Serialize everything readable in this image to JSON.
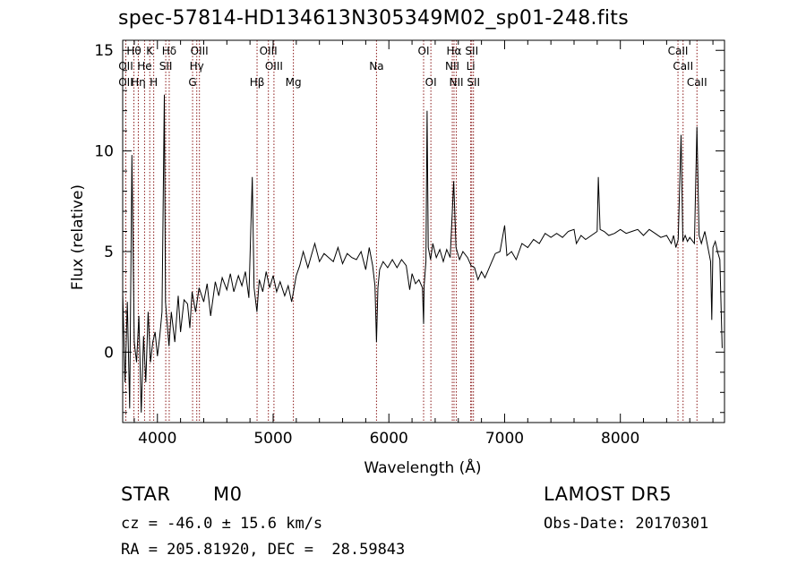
{
  "chart_data": {
    "type": "line",
    "title": "spec-57814-HD134613N305349M02_sp01-248.fits",
    "xlabel": "Wavelength (Å)",
    "ylabel": "Flux (relative)",
    "xlim": [
      3700,
      8900
    ],
    "ylim": [
      -3.5,
      15.5
    ],
    "xticks": [
      4000,
      5000,
      6000,
      7000,
      8000
    ],
    "yticks": [
      0,
      5,
      10,
      15
    ],
    "grid": false,
    "series": [
      {
        "color": "#000000",
        "points": [
          [
            3700,
            3.0
          ],
          [
            3720,
            -1.5
          ],
          [
            3740,
            2.5
          ],
          [
            3760,
            -2.8
          ],
          [
            3780,
            9.8
          ],
          [
            3800,
            0.5
          ],
          [
            3820,
            -0.5
          ],
          [
            3840,
            1.8
          ],
          [
            3860,
            -3.0
          ],
          [
            3880,
            0.8
          ],
          [
            3900,
            -1.5
          ],
          [
            3920,
            2.0
          ],
          [
            3940,
            -0.5
          ],
          [
            3960,
            0.5
          ],
          [
            3980,
            1.0
          ],
          [
            4000,
            -0.2
          ],
          [
            4020,
            0.8
          ],
          [
            4040,
            2.0
          ],
          [
            4060,
            12.8
          ],
          [
            4070,
            2.5
          ],
          [
            4100,
            0.3
          ],
          [
            4120,
            2.0
          ],
          [
            4150,
            0.5
          ],
          [
            4180,
            2.8
          ],
          [
            4200,
            1.0
          ],
          [
            4230,
            2.6
          ],
          [
            4260,
            2.4
          ],
          [
            4280,
            1.2
          ],
          [
            4300,
            3.0
          ],
          [
            4330,
            2.0
          ],
          [
            4360,
            3.2
          ],
          [
            4400,
            2.5
          ],
          [
            4430,
            3.4
          ],
          [
            4460,
            1.8
          ],
          [
            4500,
            3.5
          ],
          [
            4530,
            2.8
          ],
          [
            4560,
            3.7
          ],
          [
            4600,
            3.1
          ],
          [
            4630,
            3.9
          ],
          [
            4660,
            3.0
          ],
          [
            4700,
            3.8
          ],
          [
            4730,
            3.3
          ],
          [
            4760,
            4.0
          ],
          [
            4790,
            2.7
          ],
          [
            4820,
            8.7
          ],
          [
            4835,
            3.2
          ],
          [
            4860,
            2.0
          ],
          [
            4880,
            3.6
          ],
          [
            4910,
            3.0
          ],
          [
            4940,
            4.0
          ],
          [
            4970,
            3.2
          ],
          [
            5000,
            3.8
          ],
          [
            5030,
            3.0
          ],
          [
            5060,
            3.5
          ],
          [
            5100,
            2.8
          ],
          [
            5130,
            3.3
          ],
          [
            5160,
            2.5
          ],
          [
            5200,
            3.8
          ],
          [
            5230,
            4.3
          ],
          [
            5260,
            5.0
          ],
          [
            5300,
            4.2
          ],
          [
            5330,
            4.8
          ],
          [
            5360,
            5.4
          ],
          [
            5400,
            4.5
          ],
          [
            5440,
            4.9
          ],
          [
            5480,
            4.7
          ],
          [
            5520,
            4.5
          ],
          [
            5560,
            5.2
          ],
          [
            5600,
            4.4
          ],
          [
            5640,
            4.9
          ],
          [
            5680,
            4.7
          ],
          [
            5720,
            4.6
          ],
          [
            5760,
            5.0
          ],
          [
            5800,
            4.1
          ],
          [
            5830,
            5.2
          ],
          [
            5860,
            4.3
          ],
          [
            5880,
            3.3
          ],
          [
            5893,
            0.5
          ],
          [
            5905,
            3.2
          ],
          [
            5920,
            4.1
          ],
          [
            5950,
            4.5
          ],
          [
            5990,
            4.2
          ],
          [
            6030,
            4.6
          ],
          [
            6070,
            4.2
          ],
          [
            6110,
            4.6
          ],
          [
            6150,
            4.3
          ],
          [
            6180,
            3.1
          ],
          [
            6200,
            3.9
          ],
          [
            6230,
            3.4
          ],
          [
            6260,
            3.6
          ],
          [
            6290,
            3.2
          ],
          [
            6300,
            1.4
          ],
          [
            6305,
            3.3
          ],
          [
            6320,
            4.5
          ],
          [
            6330,
            12.0
          ],
          [
            6340,
            5.2
          ],
          [
            6360,
            4.6
          ],
          [
            6380,
            5.4
          ],
          [
            6410,
            4.7
          ],
          [
            6440,
            5.1
          ],
          [
            6470,
            4.5
          ],
          [
            6500,
            5.1
          ],
          [
            6530,
            4.7
          ],
          [
            6560,
            8.5
          ],
          [
            6580,
            5.2
          ],
          [
            6610,
            4.6
          ],
          [
            6640,
            5.0
          ],
          [
            6680,
            4.7
          ],
          [
            6710,
            4.3
          ],
          [
            6740,
            4.2
          ],
          [
            6770,
            3.6
          ],
          [
            6800,
            4.0
          ],
          [
            6830,
            3.7
          ],
          [
            6860,
            4.1
          ],
          [
            6890,
            4.5
          ],
          [
            6920,
            4.9
          ],
          [
            6960,
            5.0
          ],
          [
            7000,
            6.3
          ],
          [
            7020,
            4.8
          ],
          [
            7060,
            5.0
          ],
          [
            7100,
            4.6
          ],
          [
            7150,
            5.4
          ],
          [
            7200,
            5.2
          ],
          [
            7250,
            5.6
          ],
          [
            7300,
            5.4
          ],
          [
            7350,
            5.9
          ],
          [
            7400,
            5.7
          ],
          [
            7450,
            5.9
          ],
          [
            7500,
            5.7
          ],
          [
            7550,
            6.0
          ],
          [
            7600,
            6.1
          ],
          [
            7620,
            5.4
          ],
          [
            7660,
            5.8
          ],
          [
            7700,
            5.6
          ],
          [
            7750,
            5.8
          ],
          [
            7800,
            6.0
          ],
          [
            7810,
            8.7
          ],
          [
            7825,
            6.1
          ],
          [
            7860,
            6.0
          ],
          [
            7900,
            5.8
          ],
          [
            7950,
            5.9
          ],
          [
            8000,
            6.1
          ],
          [
            8050,
            5.9
          ],
          [
            8100,
            6.0
          ],
          [
            8150,
            6.1
          ],
          [
            8200,
            5.8
          ],
          [
            8250,
            6.1
          ],
          [
            8300,
            5.9
          ],
          [
            8350,
            5.7
          ],
          [
            8400,
            5.8
          ],
          [
            8440,
            5.4
          ],
          [
            8460,
            5.8
          ],
          [
            8480,
            5.2
          ],
          [
            8500,
            5.6
          ],
          [
            8525,
            10.8
          ],
          [
            8540,
            5.5
          ],
          [
            8560,
            5.8
          ],
          [
            8580,
            5.5
          ],
          [
            8600,
            5.7
          ],
          [
            8640,
            5.4
          ],
          [
            8662,
            11.2
          ],
          [
            8680,
            5.8
          ],
          [
            8700,
            5.4
          ],
          [
            8730,
            6.0
          ],
          [
            8760,
            5.1
          ],
          [
            8780,
            4.5
          ],
          [
            8790,
            1.6
          ],
          [
            8800,
            5.2
          ],
          [
            8820,
            5.5
          ],
          [
            8840,
            5.0
          ],
          [
            8860,
            4.6
          ],
          [
            8880,
            0.2
          ]
        ]
      }
    ],
    "lines": [
      {
        "name": "Hθ",
        "wl": 3797,
        "row": 0,
        "color": "#8b1a1a"
      },
      {
        "name": "K",
        "wl": 3934,
        "row": 0,
        "color": "#8b1a1a"
      },
      {
        "name": "Hδ",
        "wl": 4102,
        "row": 0,
        "color": "#8b1a1a"
      },
      {
        "name": "OIII",
        "wl": 4363,
        "row": 0,
        "color": "#8b1a1a"
      },
      {
        "name": "OIII",
        "wl": 4959,
        "row": 0,
        "color": "#8b1a1a"
      },
      {
        "name": "OI",
        "wl": 6300,
        "row": 0,
        "color": "#8b1a1a"
      },
      {
        "name": "Hα",
        "wl": 6563,
        "row": 0,
        "color": "#8b1a1a"
      },
      {
        "name": "SII",
        "wl": 6716,
        "row": 0,
        "color": "#8b1a1a"
      },
      {
        "name": "CaII",
        "wl": 8498,
        "row": 0,
        "color": "#8b1a1a"
      },
      {
        "name": "OII",
        "wl": 3727,
        "row": 1,
        "color": "#8b1a1a"
      },
      {
        "name": "He",
        "wl": 3889,
        "row": 1,
        "color": "#8b1a1a"
      },
      {
        "name": "SII",
        "wl": 4072,
        "row": 1,
        "color": "#8b1a1a"
      },
      {
        "name": "Hγ",
        "wl": 4340,
        "row": 1,
        "color": "#8b1a1a"
      },
      {
        "name": "OIII",
        "wl": 5007,
        "row": 1,
        "color": "#8b1a1a"
      },
      {
        "name": "Na",
        "wl": 5893,
        "row": 1,
        "color": "#8b1a1a"
      },
      {
        "name": "NII",
        "wl": 6548,
        "row": 1,
        "color": "#8b1a1a"
      },
      {
        "name": "Li",
        "wl": 6707,
        "row": 1,
        "color": "#8b1a1a"
      },
      {
        "name": "CaII",
        "wl": 8542,
        "row": 1,
        "color": "#8b1a1a"
      },
      {
        "name": "OII",
        "wl": 3727,
        "row": 2,
        "color": "#8b1a1a"
      },
      {
        "name": "Hη",
        "wl": 3835,
        "row": 2,
        "color": "#8b1a1a"
      },
      {
        "name": "H",
        "wl": 3968,
        "row": 2,
        "color": "#8b1a1a"
      },
      {
        "name": "G",
        "wl": 4304,
        "row": 2,
        "color": "#8b1a1a"
      },
      {
        "name": "Hβ",
        "wl": 4861,
        "row": 2,
        "color": "#8b1a1a"
      },
      {
        "name": "Mg",
        "wl": 5175,
        "row": 2,
        "color": "#8b1a1a"
      },
      {
        "name": "OI",
        "wl": 6363,
        "row": 2,
        "color": "#8b1a1a"
      },
      {
        "name": "NII",
        "wl": 6583,
        "row": 2,
        "color": "#8b1a1a"
      },
      {
        "name": "SII",
        "wl": 6731,
        "row": 2,
        "color": "#8b1a1a"
      },
      {
        "name": "CaII",
        "wl": 8662,
        "row": 2,
        "color": "#8b1a1a"
      }
    ]
  },
  "info": {
    "class": "STAR",
    "subclass": "M0",
    "survey": "LAMOST DR5",
    "cz": "cz = -46.0 ± 15.6 km/s",
    "obs_date": "Obs-Date: 20170301",
    "coords": "RA = 205.81920, DEC =  28.59843"
  }
}
